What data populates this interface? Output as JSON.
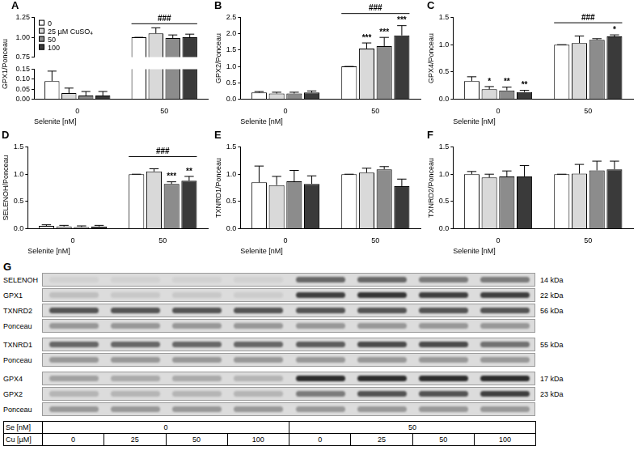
{
  "chart_data": [
    {
      "type": "bar",
      "title": "A",
      "x_label": "Selenite [nM]",
      "y_label": "GPX1/Ponceau",
      "categories": [
        "0",
        "50"
      ],
      "series": [
        {
          "name": "0",
          "color": "#ffffff",
          "values": [
            0.09,
            1.0
          ],
          "errors": [
            0.05,
            0
          ]
        },
        {
          "name": "25 µM CuSO₄",
          "color": "#d9d9d9",
          "values": [
            0.03,
            1.05
          ],
          "errors": [
            0.025,
            0.07
          ]
        },
        {
          "name": "50",
          "color": "#8c8c8c",
          "values": [
            0.018,
            0.99
          ],
          "errors": [
            0.02,
            0.04
          ]
        },
        {
          "name": "100",
          "color": "#3a3a3a",
          "values": [
            0.018,
            1.0
          ],
          "errors": [
            0.02,
            0.04
          ]
        }
      ],
      "ylim": [
        0,
        1.25
      ],
      "ybreak": [
        0.15,
        0.75
      ],
      "yticks": [
        {
          "value": 0,
          "label": "0.00"
        },
        {
          "value": 0.05,
          "label": "0.05"
        },
        {
          "value": 0.1,
          "label": "0.10"
        },
        {
          "value": 0.15,
          "label": "0.15"
        },
        {
          "value": 0.75,
          "label": "0.75"
        },
        {
          "value": 1,
          "label": "1.00"
        },
        {
          "value": 1.25,
          "label": "1.25"
        }
      ],
      "grid": false,
      "legend": "upper left",
      "annotations": [
        {
          "text": "###",
          "category": 1
        }
      ]
    },
    {
      "type": "bar",
      "title": "B",
      "x_label": "Selenite [nM]",
      "y_label": "GPX2/Ponceau",
      "categories": [
        "0",
        "50"
      ],
      "series": [
        {
          "color": "#ffffff",
          "values": [
            0.2,
            1.0
          ],
          "errors": [
            0.03,
            0
          ]
        },
        {
          "color": "#d9d9d9",
          "values": [
            0.17,
            1.55
          ],
          "errors": [
            0.04,
            0.17
          ]
        },
        {
          "color": "#8c8c8c",
          "values": [
            0.17,
            1.62
          ],
          "errors": [
            0.04,
            0.27
          ]
        },
        {
          "color": "#3a3a3a",
          "values": [
            0.2,
            1.95
          ],
          "errors": [
            0.05,
            0.3
          ]
        }
      ],
      "ylim": [
        0,
        2.5
      ],
      "yticks": [
        {
          "value": 0,
          "label": "0.0"
        },
        {
          "value": 0.5,
          "label": "0.5"
        },
        {
          "value": 1,
          "label": "1.0"
        },
        {
          "value": 1.5,
          "label": "1.5"
        },
        {
          "value": 2,
          "label": "2.0"
        },
        {
          "value": 2.5,
          "label": "2.5"
        }
      ],
      "grid": false,
      "annotations": [
        {
          "text": "###",
          "category": 1
        },
        {
          "text": "***",
          "category": 1,
          "series": 1
        },
        {
          "text": "***",
          "category": 1,
          "series": 2
        },
        {
          "text": "***",
          "category": 1,
          "series": 3
        }
      ]
    },
    {
      "type": "bar",
      "title": "C",
      "x_label": "Selenite [nM]",
      "y_label": "GPX4/Ponceau",
      "categories": [
        "0",
        "50"
      ],
      "series": [
        {
          "color": "#ffffff",
          "values": [
            0.33,
            1.0
          ],
          "errors": [
            0.08,
            0
          ]
        },
        {
          "color": "#d9d9d9",
          "values": [
            0.18,
            1.03
          ],
          "errors": [
            0.05,
            0.13
          ]
        },
        {
          "color": "#8c8c8c",
          "values": [
            0.16,
            1.09
          ],
          "errors": [
            0.06,
            0.02
          ]
        },
        {
          "color": "#3a3a3a",
          "values": [
            0.13,
            1.15
          ],
          "errors": [
            0.03,
            0.03
          ]
        }
      ],
      "ylim": [
        0,
        1.5
      ],
      "yticks": [
        {
          "value": 0,
          "label": "0.0"
        },
        {
          "value": 0.5,
          "label": "0.5"
        },
        {
          "value": 1,
          "label": "1.0"
        },
        {
          "value": 1.5,
          "label": "1.5"
        }
      ],
      "grid": false,
      "annotations": [
        {
          "text": "###",
          "category": 1
        },
        {
          "text": "*",
          "category": 0,
          "series": 1
        },
        {
          "text": "**",
          "category": 0,
          "series": 2
        },
        {
          "text": "**",
          "category": 0,
          "series": 3
        },
        {
          "text": "*",
          "category": 1,
          "series": 3
        }
      ]
    },
    {
      "type": "bar",
      "title": "D",
      "x_label": "Selenite [nM]",
      "y_label": "SELENOH/Ponceau",
      "categories": [
        "0",
        "50"
      ],
      "series": [
        {
          "color": "#ffffff",
          "values": [
            0.05,
            1.0
          ],
          "errors": [
            0.02,
            0
          ]
        },
        {
          "color": "#d9d9d9",
          "values": [
            0.04,
            1.05
          ],
          "errors": [
            0.02,
            0.05
          ]
        },
        {
          "color": "#8c8c8c",
          "values": [
            0.03,
            0.82
          ],
          "errors": [
            0.02,
            0.04
          ]
        },
        {
          "color": "#3a3a3a",
          "values": [
            0.04,
            0.88
          ],
          "errors": [
            0.02,
            0.08
          ]
        }
      ],
      "ylim": [
        0,
        1.5
      ],
      "yticks": [
        {
          "value": 0,
          "label": "0.0"
        },
        {
          "value": 0.5,
          "label": "0.5"
        },
        {
          "value": 1,
          "label": "1.0"
        },
        {
          "value": 1.5,
          "label": "1.5"
        }
      ],
      "grid": false,
      "annotations": [
        {
          "text": "###",
          "category": 1
        },
        {
          "text": "***",
          "category": 1,
          "series": 2
        },
        {
          "text": "**",
          "category": 1,
          "series": 3
        }
      ]
    },
    {
      "type": "bar",
      "title": "E",
      "x_label": "Selenite [nM]",
      "y_label": "TXNRD1/Ponceau",
      "categories": [
        "0",
        "50"
      ],
      "series": [
        {
          "color": "#ffffff",
          "values": [
            0.85,
            1.0
          ],
          "errors": [
            0.3,
            0
          ]
        },
        {
          "color": "#d9d9d9",
          "values": [
            0.8,
            1.03
          ],
          "errors": [
            0.16,
            0.08
          ]
        },
        {
          "color": "#8c8c8c",
          "values": [
            0.87,
            1.09
          ],
          "errors": [
            0.2,
            0.05
          ]
        },
        {
          "color": "#3a3a3a",
          "values": [
            0.82,
            0.78
          ],
          "errors": [
            0.15,
            0.13
          ]
        }
      ],
      "ylim": [
        0,
        1.5
      ],
      "yticks": [
        {
          "value": 0,
          "label": "0.0"
        },
        {
          "value": 0.5,
          "label": "0.5"
        },
        {
          "value": 1,
          "label": "1.0"
        },
        {
          "value": 1.5,
          "label": "1.5"
        }
      ],
      "grid": false
    },
    {
      "type": "bar",
      "title": "F",
      "x_label": "Selenite [nM]",
      "y_label": "TXNRD2/Ponceau",
      "categories": [
        "0",
        "50"
      ],
      "series": [
        {
          "color": "#ffffff",
          "values": [
            1.0,
            1.0
          ],
          "errors": [
            0.05,
            0
          ]
        },
        {
          "color": "#d9d9d9",
          "values": [
            0.94,
            1.01
          ],
          "errors": [
            0.06,
            0.17
          ]
        },
        {
          "color": "#8c8c8c",
          "values": [
            0.96,
            1.07
          ],
          "errors": [
            0.1,
            0.17
          ]
        },
        {
          "color": "#3a3a3a",
          "values": [
            0.96,
            1.09
          ],
          "errors": [
            0.2,
            0.15
          ]
        }
      ],
      "ylim": [
        0,
        1.5
      ],
      "yticks": [
        {
          "value": 0,
          "label": "0.0"
        },
        {
          "value": 0.5,
          "label": "0.5"
        },
        {
          "value": 1,
          "label": "1.0"
        },
        {
          "value": 1.5,
          "label": "1.5"
        }
      ],
      "grid": false
    }
  ],
  "blot": {
    "title": "G",
    "blocks": [
      {
        "rows": [
          {
            "label": "SELENOH",
            "size": "14 kDa",
            "intensity": [
              0.05,
              0.05,
              0.05,
              0.05,
              0.6,
              0.6,
              0.5,
              0.5
            ]
          },
          {
            "label": "GPX1",
            "size": "22 kDa",
            "intensity": [
              0.15,
              0.1,
              0.1,
              0.08,
              0.8,
              0.85,
              0.8,
              0.8
            ]
          },
          {
            "label": "TXNRD2",
            "size": "56 kDa",
            "intensity": [
              0.7,
              0.7,
              0.7,
              0.7,
              0.7,
              0.7,
              0.7,
              0.7
            ]
          },
          {
            "label": "Ponceau",
            "intensity": [
              0.35,
              0.35,
              0.35,
              0.35,
              0.35,
              0.35,
              0.35,
              0.35
            ]
          }
        ]
      },
      {
        "rows": [
          {
            "label": "TXNRD1",
            "size": "55 kDa",
            "intensity": [
              0.6,
              0.6,
              0.6,
              0.6,
              0.65,
              0.75,
              0.75,
              0.55
            ]
          },
          {
            "label": "Ponceau",
            "intensity": [
              0.35,
              0.35,
              0.35,
              0.35,
              0.35,
              0.35,
              0.35,
              0.35
            ]
          }
        ]
      },
      {
        "rows": [
          {
            "label": "GPX4",
            "size": "17 kDa",
            "intensity": [
              0.3,
              0.25,
              0.25,
              0.2,
              0.9,
              0.9,
              0.9,
              0.9
            ]
          },
          {
            "label": "GPX2",
            "size": "23 kDa",
            "intensity": [
              0.2,
              0.2,
              0.2,
              0.2,
              0.5,
              0.7,
              0.7,
              0.8
            ]
          },
          {
            "label": "Ponceau",
            "intensity": [
              0.35,
              0.35,
              0.35,
              0.35,
              0.35,
              0.35,
              0.35,
              0.35
            ]
          }
        ]
      }
    ],
    "conditions": [
      {
        "label": "Se [nM]",
        "values": [
          0,
          50
        ]
      },
      {
        "label": "Cu [µM]",
        "values": [
          0,
          25,
          50,
          100,
          0,
          25,
          50,
          100
        ]
      }
    ]
  }
}
